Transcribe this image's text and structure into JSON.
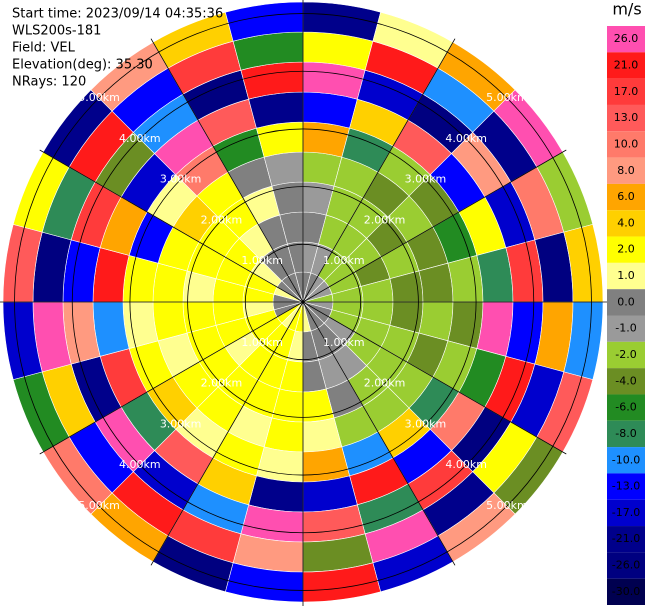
{
  "chart_data": {
    "type": "ppi",
    "header": [
      "Start time: 2023/09/14 04:35:36",
      "WLS200s-181",
      "Field: VEL",
      "Elevation(deg): 35.30",
      "NRays: 120"
    ],
    "colorbar_title": "m/s",
    "colorbar": [
      {
        "value": 26,
        "label": "26.0",
        "color": "#ff4fb0"
      },
      {
        "value": 21,
        "label": "21.0",
        "color": "#ff1a1a"
      },
      {
        "value": 17,
        "label": "17.0",
        "color": "#ff3b3b"
      },
      {
        "value": 13,
        "label": "13.0",
        "color": "#ff5a5a"
      },
      {
        "value": 10,
        "label": "10.0",
        "color": "#ff7a6a"
      },
      {
        "value": 8,
        "label": "8.0",
        "color": "#ff9a80"
      },
      {
        "value": 6,
        "label": "6.0",
        "color": "#ffa500"
      },
      {
        "value": 4,
        "label": "4.0",
        "color": "#ffd000"
      },
      {
        "value": 2,
        "label": "2.0",
        "color": "#ffff00"
      },
      {
        "value": 1,
        "label": "1.0",
        "color": "#ffff90"
      },
      {
        "value": 0,
        "label": "0.0",
        "color": "#808080"
      },
      {
        "value": -1,
        "label": "-1.0",
        "color": "#9a9a9a"
      },
      {
        "value": -2,
        "label": "-2.0",
        "color": "#9acd32"
      },
      {
        "value": -4,
        "label": "-4.0",
        "color": "#6b8e23"
      },
      {
        "value": -6,
        "label": "-6.0",
        "color": "#228b22"
      },
      {
        "value": -8,
        "label": "-8.0",
        "color": "#2e8b57"
      },
      {
        "value": -10,
        "label": "-10.0",
        "color": "#1e90ff"
      },
      {
        "value": -13,
        "label": "-13.0",
        "color": "#0000ff"
      },
      {
        "value": -17,
        "label": "-17.0",
        "color": "#0000cd"
      },
      {
        "value": -21,
        "label": "-21.0",
        "color": "#00008b"
      },
      {
        "value": -26,
        "label": "-26.0",
        "color": "#000080"
      },
      {
        "value": -30,
        "label": "-30.0",
        "color": "#000050"
      }
    ],
    "rlim": [
      0,
      5.2
    ],
    "rings": [
      {
        "value": 1,
        "label": "1.00km"
      },
      {
        "value": 2,
        "label": "2.00km"
      },
      {
        "value": 3,
        "label": "3.00km"
      },
      {
        "value": 4,
        "label": "4.00km"
      },
      {
        "value": 5,
        "label": "5.00km"
      }
    ],
    "field": [
      [
        0,
        -1,
        0,
        -1,
        -2,
        6,
        -13,
        26,
        2,
        -21
      ],
      [
        0,
        -1,
        -2,
        -2,
        -2,
        -8,
        4,
        -17,
        21,
        1
      ],
      [
        -1,
        -2,
        -2,
        -2,
        -4,
        -2,
        13,
        -26,
        -10,
        6
      ],
      [
        -1,
        -2,
        -2,
        -4,
        -2,
        -4,
        -13,
        8,
        -21,
        26
      ],
      [
        -1,
        -2,
        -4,
        -2,
        -4,
        -6,
        2,
        -17,
        10,
        -2
      ],
      [
        -2,
        -2,
        -2,
        -4,
        -4,
        -2,
        -8,
        17,
        -26,
        4
      ],
      [
        -1,
        -2,
        -2,
        -4,
        -2,
        -4,
        26,
        -13,
        6,
        -10
      ],
      [
        0,
        -2,
        -2,
        -2,
        -4,
        -2,
        -6,
        21,
        -17,
        13
      ],
      [
        0,
        -1,
        -2,
        -2,
        -2,
        -8,
        10,
        -26,
        2,
        -4
      ],
      [
        0,
        0,
        -1,
        -2,
        -2,
        4,
        -13,
        17,
        -21,
        8
      ],
      [
        0,
        0,
        -1,
        0,
        -2,
        -10,
        21,
        -8,
        26,
        -17
      ],
      [
        1,
        0,
        0,
        2,
        1,
        6,
        -17,
        13,
        -4,
        21
      ],
      [
        2,
        1,
        2,
        2,
        2,
        1,
        -21,
        26,
        8,
        -13
      ],
      [
        2,
        2,
        2,
        2,
        1,
        2,
        4,
        -10,
        17,
        -26
      ],
      [
        1,
        2,
        2,
        2,
        2,
        1,
        13,
        -17,
        21,
        6
      ],
      [
        2,
        2,
        1,
        2,
        2,
        4,
        -8,
        26,
        -13,
        10
      ],
      [
        0,
        2,
        2,
        2,
        1,
        2,
        17,
        -21,
        4,
        -6
      ],
      [
        0,
        1,
        2,
        2,
        2,
        1,
        -10,
        8,
        26,
        -17
      ],
      [
        0,
        2,
        2,
        1,
        2,
        2,
        21,
        -13,
        -26,
        13
      ],
      [
        1,
        2,
        2,
        2,
        2,
        -13,
        6,
        17,
        -8,
        2
      ],
      [
        0,
        1,
        2,
        2,
        4,
        1,
        -17,
        -4,
        21,
        -21
      ],
      [
        0,
        0,
        1,
        2,
        2,
        10,
        26,
        -10,
        -13,
        8
      ],
      [
        0,
        0,
        0,
        1,
        0,
        -6,
        13,
        -26,
        17,
        4
      ],
      [
        0,
        0,
        0,
        0,
        -1,
        2,
        -21,
        21,
        -6,
        -13
      ]
    ]
  }
}
